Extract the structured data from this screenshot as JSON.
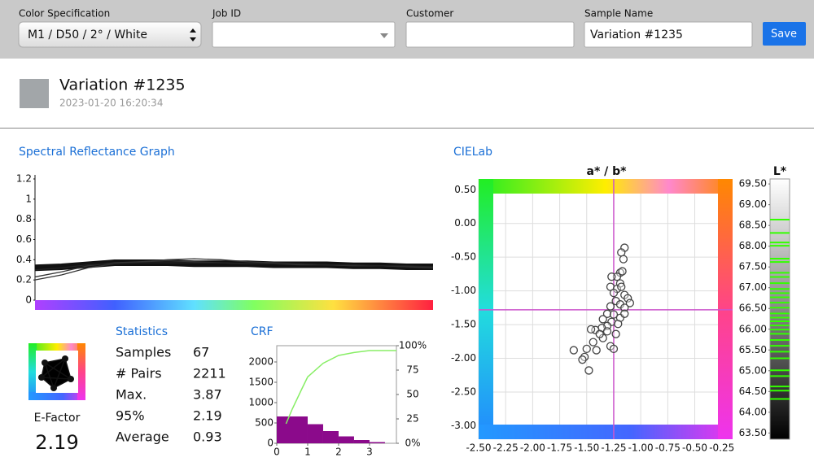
{
  "toolbar": {
    "fields": [
      {
        "label": "Color Specification",
        "value": "M1 / D50 / 2° / White"
      },
      {
        "label": "Job ID"
      },
      {
        "label": "Customer"
      },
      {
        "label": "Sample Name",
        "value": "Variation #1235"
      }
    ],
    "button": "Save"
  },
  "sample": {
    "name": "Variation #1235",
    "timestamp": "2023-01-20 16:20:34",
    "color": "#a2a6a9"
  },
  "statistics": {
    "title": "Statistics",
    "rows": [
      {
        "label": "Samples",
        "value": 67
      },
      {
        "label": "# Pairs",
        "value": 2211
      },
      {
        "label": "Max.",
        "value": 3.87
      },
      {
        "label": "95%",
        "value": 2.19
      },
      {
        "label": "Average",
        "value": 0.93
      }
    ]
  },
  "e_factor": {
    "label": "E-Factor",
    "value": 2.19
  },
  "chart_data": [
    {
      "type": "line",
      "title": "Spectral Reflectance Graph",
      "ylim": [
        0,
        1.2
      ],
      "yticks": [
        0,
        0.2,
        0.4,
        0.6,
        0.8,
        1,
        1.2
      ],
      "series": [
        {
          "color": "#111111",
          "values": [
            0.32,
            0.33,
            0.35,
            0.37,
            0.37,
            0.37,
            0.36,
            0.36,
            0.36,
            0.35,
            0.35,
            0.35,
            0.34,
            0.34,
            0.33,
            0.33
          ]
        },
        {
          "color": "#333333",
          "values": [
            0.2,
            0.25,
            0.32,
            0.36,
            0.38,
            0.39,
            0.38,
            0.37,
            0.36,
            0.36,
            0.35,
            0.35,
            0.34,
            0.34,
            0.33,
            0.33
          ]
        },
        {
          "color": "#333333",
          "values": [
            0.23,
            0.28,
            0.34,
            0.37,
            0.38,
            0.4,
            0.41,
            0.4,
            0.38,
            0.37,
            0.36,
            0.35,
            0.34,
            0.34,
            0.33,
            0.32
          ]
        },
        {
          "color": "#222222",
          "values": [
            0.3,
            0.32,
            0.35,
            0.36,
            0.37,
            0.37,
            0.37,
            0.37,
            0.36,
            0.36,
            0.36,
            0.35,
            0.35,
            0.34,
            0.34,
            0.33
          ]
        }
      ]
    },
    {
      "type": "histogram",
      "title": "CRF",
      "bins": [
        0,
        0.5,
        1,
        1.5,
        2,
        2.5,
        3,
        3.5
      ],
      "counts": [
        660,
        660,
        470,
        300,
        170,
        80,
        30
      ],
      "color": "#8b0a8b",
      "xlim": [
        0,
        3.87
      ],
      "xticks": [
        0,
        1,
        2,
        3
      ],
      "ylim": [
        0,
        2400
      ],
      "yticks": [
        0,
        500,
        1000,
        1500,
        2000
      ],
      "y2lim": [
        0,
        100
      ],
      "y2ticks": [
        {
          "value": 0,
          "label": "0%"
        },
        25,
        50,
        75,
        {
          "value": 100,
          "label": "100%"
        }
      ],
      "series": [
        {
          "color": "#88ee66",
          "axis": "y2",
          "x": [
            0.3,
            0.5,
            0.8,
            1.0,
            1.5,
            2.0,
            2.5,
            3.0,
            3.87
          ],
          "values": [
            20,
            35,
            55,
            68,
            82,
            90,
            93,
            95,
            95
          ]
        }
      ]
    },
    {
      "type": "scatter",
      "title": "CIELab",
      "subtitle": "a* / b*",
      "mean": {
        "x": -1.25,
        "y": -1.28
      },
      "mean_color": "#cc55cc",
      "xlim": [
        -2.5,
        -0.15
      ],
      "ylim": [
        -3.2,
        0.66
      ],
      "xticks": [
        {
          "value": -2.5,
          "label": "-2.50"
        },
        {
          "value": -2.25,
          "label": "-2.25"
        },
        {
          "value": -2,
          "label": "-2.00"
        },
        {
          "value": -1.75,
          "label": "-1.75"
        },
        {
          "value": -1.5,
          "label": "-1.50"
        },
        {
          "value": -1.25,
          "label": "-1.25"
        },
        {
          "value": -1,
          "label": "-1.00"
        },
        {
          "value": -0.75,
          "label": "-0.75"
        },
        {
          "value": -0.5,
          "label": "-0.50"
        },
        {
          "value": -0.25,
          "label": "-0.25"
        }
      ],
      "yticks": [
        {
          "value": 0.5,
          "label": "0.50"
        },
        {
          "value": 0,
          "label": "0.00"
        },
        {
          "value": -0.5,
          "label": "-0.50"
        },
        {
          "value": -1,
          "label": "-1.00"
        },
        {
          "value": -1.5,
          "label": "-1.50"
        },
        {
          "value": -2,
          "label": "-2.00"
        },
        {
          "value": -2.5,
          "label": "-2.50"
        },
        {
          "value": -3,
          "label": "-3.00"
        }
      ],
      "x": [
        -1.15,
        -1.18,
        -1.16,
        -1.19,
        -1.17,
        -1.22,
        -1.19,
        -1.27,
        -1.28,
        -1.22,
        -1.18,
        -1.25,
        -1.15,
        -1.12,
        -1.23,
        -1.19,
        -1.28,
        -1.15,
        -1.1,
        -1.31,
        -1.25,
        -1.19,
        -1.15,
        -1.35,
        -1.27,
        -1.21,
        -1.31,
        -1.36,
        -1.42,
        -1.46,
        -1.31,
        -1.23,
        -1.35,
        -1.38,
        -1.44,
        -1.28,
        -1.25,
        -1.5,
        -1.52,
        -1.41,
        -1.62,
        -1.54,
        -1.48
      ],
      "values": [
        -0.36,
        -0.43,
        -0.53,
        -0.73,
        -0.71,
        -0.79,
        -0.89,
        -0.79,
        -0.94,
        -0.97,
        -0.94,
        -1.03,
        -1.06,
        -1.11,
        -1.15,
        -1.2,
        -1.23,
        -1.25,
        -1.18,
        -1.34,
        -1.35,
        -1.4,
        -1.34,
        -1.42,
        -1.46,
        -1.49,
        -1.52,
        -1.55,
        -1.58,
        -1.57,
        -1.6,
        -1.64,
        -1.7,
        -1.64,
        -1.76,
        -1.82,
        -1.86,
        -1.86,
        -1.98,
        -1.88,
        -1.88,
        -2.02,
        -2.18
      ]
    },
    {
      "type": "strip",
      "title": "L*",
      "ylim": [
        63.35,
        69.62
      ],
      "color": "#33ff00",
      "yticks": [
        {
          "value": 69.5,
          "label": "69.50"
        },
        {
          "value": 69,
          "label": "69.00"
        },
        {
          "value": 68.5,
          "label": "68.50"
        },
        {
          "value": 68,
          "label": "68.00"
        },
        {
          "value": 67.5,
          "label": "67.50"
        },
        {
          "value": 67,
          "label": "67.00"
        },
        {
          "value": 66.5,
          "label": "66.50"
        },
        {
          "value": 66,
          "label": "66.00"
        },
        {
          "value": 65.5,
          "label": "65.50"
        },
        {
          "value": 65,
          "label": "65.00"
        },
        {
          "value": 64.5,
          "label": "64.50"
        },
        {
          "value": 64,
          "label": "64.00"
        },
        {
          "value": 63.5,
          "label": "63.50"
        }
      ],
      "values": [
        68.64,
        68.32,
        68.09,
        68.01,
        67.7,
        67.62,
        67.36,
        67.26,
        67.11,
        66.97,
        66.87,
        66.77,
        66.64,
        66.52,
        66.38,
        66.28,
        66.19,
        66.09,
        65.99,
        65.89,
        65.74,
        65.6,
        65.46,
        65.3,
        65.01,
        64.87,
        64.62,
        64.52,
        64.32
      ]
    }
  ]
}
